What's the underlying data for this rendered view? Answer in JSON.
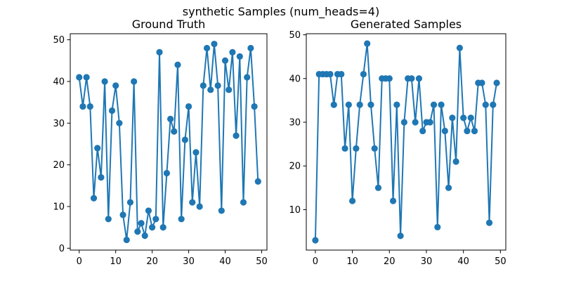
{
  "figure": {
    "suptitle": "synthetic Samples (num_heads=4)"
  },
  "colors": {
    "series": "#1f77b4",
    "axes": "#000000",
    "background": "#ffffff"
  },
  "chart_data": [
    {
      "type": "line",
      "markers": true,
      "title": "Ground Truth",
      "xlabel": "",
      "ylabel": "",
      "xlim": [
        -2.45,
        51.45
      ],
      "ylim": [
        -0.45,
        51.45
      ],
      "xticks": [
        0,
        10,
        20,
        30,
        40,
        50
      ],
      "yticks": [
        0,
        10,
        20,
        30,
        40,
        50
      ],
      "grid": false,
      "x": [
        0,
        1,
        2,
        3,
        4,
        5,
        6,
        7,
        8,
        9,
        10,
        11,
        12,
        13,
        14,
        15,
        16,
        17,
        18,
        19,
        20,
        21,
        22,
        23,
        24,
        25,
        26,
        27,
        28,
        29,
        30,
        31,
        32,
        33,
        34,
        35,
        36,
        37,
        38,
        39,
        40,
        41,
        42,
        43,
        44,
        45,
        46,
        47,
        48,
        49
      ],
      "series": [
        {
          "values": [
            41,
            34,
            41,
            34,
            12,
            24,
            17,
            40,
            7,
            33,
            39,
            30,
            8,
            2,
            11,
            40,
            4,
            6,
            3,
            9,
            5,
            7,
            47,
            5,
            18,
            31,
            28,
            44,
            7,
            26,
            34,
            11,
            23,
            10,
            39,
            48,
            38,
            49,
            39,
            9,
            45,
            38,
            47,
            27,
            46,
            11,
            41,
            48,
            34,
            16
          ]
        }
      ]
    },
    {
      "type": "line",
      "markers": true,
      "title": "Generated Samples",
      "xlabel": "",
      "ylabel": "",
      "xlim": [
        -2.45,
        51.45
      ],
      "ylim": [
        0.75,
        50.25
      ],
      "xticks": [
        0,
        10,
        20,
        30,
        40,
        50
      ],
      "yticks": [
        10,
        20,
        30,
        40,
        50
      ],
      "grid": false,
      "x": [
        0,
        1,
        2,
        3,
        4,
        5,
        6,
        7,
        8,
        9,
        10,
        11,
        12,
        13,
        14,
        15,
        16,
        17,
        18,
        19,
        20,
        21,
        22,
        23,
        24,
        25,
        26,
        27,
        28,
        29,
        30,
        31,
        32,
        33,
        34,
        35,
        36,
        37,
        38,
        39,
        40,
        41,
        42,
        43,
        44,
        45,
        46,
        47,
        48,
        49
      ],
      "series": [
        {
          "values": [
            3,
            41,
            41,
            41,
            41,
            34,
            41,
            41,
            24,
            34,
            12,
            24,
            34,
            41,
            48,
            34,
            24,
            15,
            40,
            40,
            40,
            12,
            34,
            4,
            30,
            40,
            40,
            30,
            40,
            28,
            30,
            30,
            34,
            6,
            34,
            28,
            15,
            31,
            21,
            47,
            31,
            28,
            31,
            28,
            39,
            39,
            34,
            7,
            34,
            39
          ]
        }
      ]
    }
  ]
}
